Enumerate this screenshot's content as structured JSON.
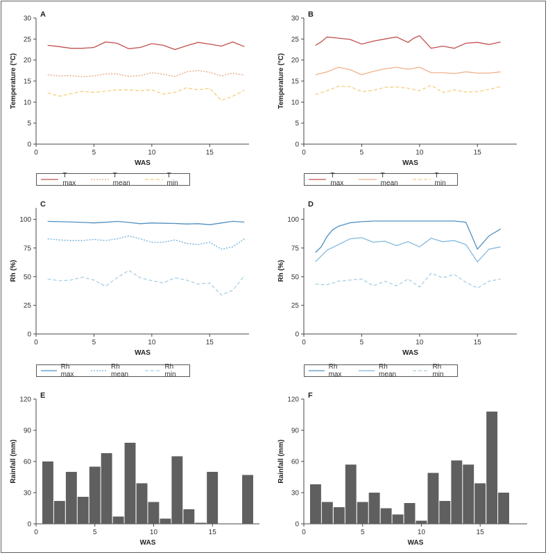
{
  "chart_data": [
    {
      "id": "A",
      "type": "line",
      "panel_label": "A",
      "title": "",
      "xlabel": "WAS",
      "ylabel": "Temperature (°C)",
      "xlim": [
        0,
        18.4
      ],
      "ylim": [
        0,
        30
      ],
      "xticks": [
        0,
        5,
        10,
        15
      ],
      "yticks": [
        0,
        5,
        10,
        15,
        20,
        25,
        30
      ],
      "legend": "bottom",
      "series": [
        {
          "name": "T max",
          "color": "#c0504d",
          "dash": "solid",
          "x": [
            1,
            2,
            3,
            4,
            5,
            6,
            7,
            8,
            9,
            10,
            11,
            12,
            13,
            14,
            15,
            16,
            17,
            18
          ],
          "y": [
            23.5,
            23.2,
            22.8,
            22.8,
            23.0,
            24.3,
            24.0,
            22.7,
            23.0,
            23.9,
            23.5,
            22.5,
            23.4,
            24.2,
            23.8,
            23.3,
            24.3,
            23.2
          ]
        },
        {
          "name": "T mean",
          "color": "#e8a27c",
          "dash": "dotted",
          "x": [
            1,
            2,
            3,
            4,
            5,
            6,
            7,
            8,
            9,
            10,
            11,
            12,
            13,
            14,
            15,
            16,
            17,
            18
          ],
          "y": [
            16.5,
            16.2,
            16.3,
            16.0,
            16.2,
            16.7,
            16.7,
            16.1,
            16.3,
            17.0,
            16.6,
            16.1,
            17.2,
            17.5,
            17.1,
            16.2,
            16.9,
            16.4
          ]
        },
        {
          "name": "T min",
          "color": "#f3cf7a",
          "dash": "dashed",
          "x": [
            1,
            2,
            3,
            4,
            5,
            6,
            7,
            8,
            9,
            10,
            11,
            12,
            13,
            14,
            15,
            16,
            17,
            18
          ],
          "y": [
            12.2,
            11.4,
            12.0,
            12.6,
            12.3,
            12.6,
            12.9,
            12.9,
            12.7,
            12.9,
            11.9,
            12.3,
            13.4,
            12.9,
            13.3,
            10.4,
            11.4,
            12.8
          ]
        }
      ]
    },
    {
      "id": "B",
      "type": "line",
      "panel_label": "B",
      "title": "",
      "xlabel": "WAS",
      "ylabel": "Temperature (°C)",
      "xlim": [
        0,
        18.4
      ],
      "ylim": [
        0,
        30
      ],
      "xticks": [
        0,
        5,
        10,
        15
      ],
      "yticks": [
        0,
        5,
        10,
        15,
        20,
        25,
        30
      ],
      "legend": "bottom",
      "series": [
        {
          "name": "T max",
          "color": "#c0504d",
          "dash": "solid",
          "x": [
            1,
            1.5,
            2,
            3,
            4,
            5,
            6,
            7,
            8,
            9,
            9.5,
            10,
            11,
            12,
            13,
            14,
            15,
            16,
            17
          ],
          "y": [
            23.5,
            24.3,
            25.5,
            25.2,
            24.9,
            23.8,
            24.5,
            25.0,
            25.5,
            24.2,
            25.2,
            25.8,
            22.8,
            23.3,
            22.8,
            24.0,
            24.2,
            23.7,
            24.3
          ]
        },
        {
          "name": "T mean",
          "color": "#f0b08a",
          "dash": "solid",
          "x": [
            1,
            2,
            3,
            4,
            5,
            6,
            7,
            8,
            9,
            10,
            11,
            12,
            13,
            14,
            15,
            16,
            17
          ],
          "y": [
            16.5,
            17.2,
            18.3,
            17.7,
            16.5,
            17.3,
            17.9,
            18.3,
            17.8,
            18.3,
            17.0,
            17.0,
            16.8,
            17.2,
            16.9,
            16.9,
            17.2
          ]
        },
        {
          "name": "T min",
          "color": "#f3cf7a",
          "dash": "dashed",
          "x": [
            1,
            2,
            3,
            4,
            5,
            6,
            7,
            8,
            9,
            10,
            11,
            12,
            13,
            14,
            15,
            16,
            17
          ],
          "y": [
            11.8,
            12.7,
            13.8,
            13.7,
            12.5,
            12.8,
            13.5,
            13.6,
            13.3,
            12.7,
            14.0,
            12.3,
            12.9,
            12.4,
            12.5,
            13.0,
            13.7
          ]
        }
      ]
    },
    {
      "id": "C",
      "type": "line",
      "panel_label": "C",
      "title": "",
      "xlabel": "WAS",
      "ylabel": "Rh (%)",
      "xlim": [
        0,
        18.4
      ],
      "ylim": [
        0,
        110
      ],
      "xticks": [
        0,
        5,
        10,
        15
      ],
      "yticks": [
        0,
        25,
        50,
        75,
        100
      ],
      "legend": "bottom",
      "series": [
        {
          "name": "Rh max",
          "color": "#4f8fc0",
          "dash": "solid",
          "x": [
            1,
            2,
            3,
            4,
            5,
            6,
            7,
            8,
            9,
            10,
            11,
            12,
            13,
            14,
            15,
            16,
            17,
            18
          ],
          "y": [
            98.2,
            98.0,
            97.7,
            97.3,
            96.9,
            97.4,
            98.2,
            97.3,
            96.2,
            96.8,
            96.6,
            96.4,
            95.9,
            96.2,
            95.3,
            96.8,
            98.3,
            97.6
          ]
        },
        {
          "name": "Rh mean",
          "color": "#6aaedb",
          "dash": "dotted",
          "x": [
            1,
            2,
            3,
            4,
            5,
            6,
            7,
            8,
            9,
            10,
            11,
            12,
            13,
            14,
            15,
            16,
            17,
            18
          ],
          "y": [
            83,
            82,
            81.5,
            81.5,
            82.5,
            81.5,
            83,
            85.5,
            83,
            80,
            80,
            82,
            79,
            78,
            80,
            74,
            76,
            83
          ]
        },
        {
          "name": "Rh min",
          "color": "#a9cde3",
          "dash": "dashed",
          "x": [
            1,
            2,
            3,
            4,
            5,
            6,
            7,
            8,
            9,
            10,
            11,
            12,
            13,
            14,
            15,
            16,
            17,
            18
          ],
          "y": [
            48,
            46.5,
            47,
            49.5,
            47,
            41.5,
            49,
            55.5,
            49,
            46.5,
            44.5,
            49,
            47,
            43.5,
            44.5,
            34,
            38,
            51
          ]
        }
      ]
    },
    {
      "id": "D",
      "type": "line",
      "panel_label": "D",
      "title": "",
      "xlabel": "WAS",
      "ylabel": "Rh (%)",
      "xlim": [
        0,
        18.4
      ],
      "ylim": [
        0,
        110
      ],
      "xticks": [
        0,
        5,
        10,
        15
      ],
      "yticks": [
        0,
        25,
        50,
        75,
        100
      ],
      "legend": "bottom",
      "series": [
        {
          "name": "Rh max",
          "color": "#4f8fc0",
          "dash": "solid",
          "x": [
            1,
            1.5,
            2,
            2.5,
            3,
            4,
            5,
            6,
            7,
            8,
            9,
            10,
            11,
            12,
            13,
            14,
            15,
            16,
            17
          ],
          "y": [
            71,
            76,
            85,
            91,
            94,
            97,
            98,
            98.5,
            98.5,
            98.5,
            98.5,
            98.5,
            98.5,
            98.5,
            98.5,
            97.5,
            74,
            85.5,
            91.5
          ]
        },
        {
          "name": "Rh mean",
          "color": "#7fb8dd",
          "dash": "solid",
          "x": [
            1,
            2,
            3,
            4,
            5,
            6,
            7,
            8,
            9,
            10,
            11,
            12,
            13,
            14,
            15,
            16,
            17
          ],
          "y": [
            63,
            73,
            78,
            83,
            84,
            80,
            81,
            77,
            80.5,
            76,
            83.5,
            80.5,
            81.5,
            78,
            63,
            74,
            76
          ]
        },
        {
          "name": "Rh min",
          "color": "#a9cde3",
          "dash": "dashed",
          "x": [
            1,
            2,
            3,
            4,
            5,
            6,
            7,
            8,
            9,
            10,
            11,
            12,
            13,
            14,
            15,
            16,
            17
          ],
          "y": [
            43.5,
            43,
            46,
            47,
            48,
            42,
            46,
            42,
            48,
            41,
            53,
            49,
            52,
            45,
            40,
            46,
            48
          ]
        }
      ]
    },
    {
      "id": "E",
      "type": "bar",
      "panel_label": "E",
      "title": "",
      "xlabel": "WAS",
      "ylabel": "Rainfall (mm)",
      "xlim": [
        0,
        19
      ],
      "ylim": [
        0,
        120
      ],
      "xticks": [
        0,
        5,
        10,
        15
      ],
      "yticks": [
        0,
        30,
        60,
        90,
        120
      ],
      "bar_color": "#5f5f5f",
      "x": [
        1,
        2,
        3,
        4,
        5,
        6,
        7,
        8,
        9,
        10,
        11,
        12,
        13,
        14,
        15,
        16,
        17,
        18
      ],
      "values": [
        60,
        22,
        50,
        26,
        55,
        68,
        7,
        78,
        39,
        21,
        5,
        65,
        14,
        1,
        50,
        0,
        0,
        47
      ]
    },
    {
      "id": "F",
      "type": "bar",
      "panel_label": "F",
      "title": "",
      "xlabel": "WAS",
      "ylabel": "Rainfall (mm)",
      "xlim": [
        0,
        19
      ],
      "ylim": [
        0,
        120
      ],
      "xticks": [
        0,
        5,
        10,
        15
      ],
      "yticks": [
        0,
        30,
        60,
        90,
        120
      ],
      "bar_color": "#5f5f5f",
      "x": [
        1,
        2,
        3,
        4,
        5,
        6,
        7,
        8,
        9,
        10,
        11,
        12,
        13,
        14,
        15,
        16,
        17
      ],
      "values": [
        38,
        21,
        16,
        57,
        21,
        30,
        15,
        9,
        20,
        3,
        49,
        22,
        61,
        57,
        39,
        108,
        30
      ]
    }
  ]
}
